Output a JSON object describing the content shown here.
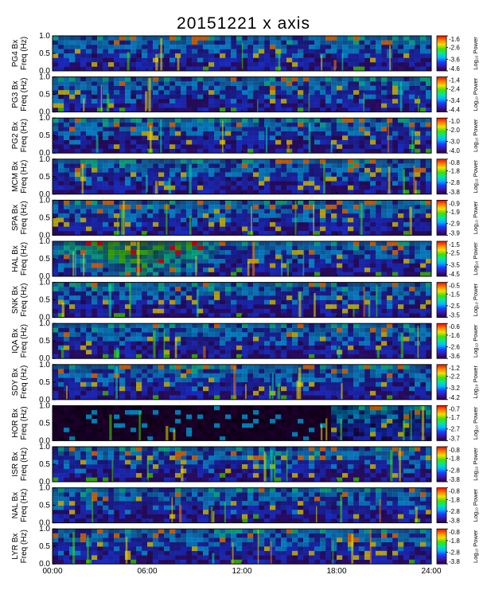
{
  "title": "20151221 x axis",
  "side_note": "",
  "chart_data": {
    "type": "heatmap",
    "title": "20151221 x axis",
    "x_axis": {
      "range_hours": [
        0,
        24
      ],
      "ticks": [
        "00:00",
        "06:00",
        "12:00",
        "18:00",
        "24:00"
      ],
      "tick_values_hours": [
        0,
        6,
        12,
        18,
        24
      ]
    },
    "y_axis": {
      "range_hz": [
        0,
        1.0
      ],
      "ticks": [
        "0.0",
        "0.5",
        "1.0"
      ],
      "tick_values_hz": [
        0,
        0.5,
        1.0
      ]
    },
    "colorbar_title": "Log₁₀ Power",
    "colormap": [
      "#2a0040",
      "#3a14a0",
      "#1a3cff",
      "#00b4ff",
      "#00e6a0",
      "#40e000",
      "#f0e000",
      "#ff8000",
      "#ff0000"
    ],
    "panels": [
      {
        "station": "PG4",
        "ylabel": "PG4 Bx Freq (Hz)",
        "cbar_ticks": [
          "-1.6",
          "-2.6",
          "-3.6",
          "-4.6"
        ],
        "cbar_range": [
          -4.6,
          -1.6
        ]
      },
      {
        "station": "PG3",
        "ylabel": "PG3 Bx Freq (Hz)",
        "cbar_ticks": [
          "-1.4",
          "-2.4",
          "-3.4",
          "-4.4"
        ],
        "cbar_range": [
          -4.4,
          -1.4
        ]
      },
      {
        "station": "PG2",
        "ylabel": "PG2 Bx Freq (Hz)",
        "cbar_ticks": [
          "-1.0",
          "-2.0",
          "-3.0",
          "-4.0"
        ],
        "cbar_range": [
          -4.0,
          -1.0
        ]
      },
      {
        "station": "MCM",
        "ylabel": "MCM Bx Freq (Hz)",
        "cbar_ticks": [
          "-0.8",
          "-1.8",
          "-2.8",
          "-3.8"
        ],
        "cbar_range": [
          -3.8,
          -0.8
        ]
      },
      {
        "station": "SPA",
        "ylabel": "SPA Bx Freq (Hz)",
        "cbar_ticks": [
          "-0.9",
          "-1.9",
          "-2.9",
          "-3.9"
        ],
        "cbar_range": [
          -3.9,
          -0.9
        ]
      },
      {
        "station": "HAL",
        "ylabel": "HAL Bx Freq (Hz)",
        "cbar_ticks": [
          "-1.5",
          "-2.5",
          "-3.5",
          "-4.5"
        ],
        "cbar_range": [
          -4.5,
          -1.5
        ]
      },
      {
        "station": "SNK",
        "ylabel": "SNK Bx Freq (Hz)",
        "cbar_ticks": [
          "-0.5",
          "-1.5",
          "-2.5",
          "-3.5"
        ],
        "cbar_range": [
          -3.5,
          -0.5
        ]
      },
      {
        "station": "IQA",
        "ylabel": "IQA Bx Freq (Hz)",
        "cbar_ticks": [
          "-0.6",
          "-1.6",
          "-2.6",
          "-3.6"
        ],
        "cbar_range": [
          -3.6,
          -0.6
        ]
      },
      {
        "station": "SDY",
        "ylabel": "SDY Bx Freq (Hz)",
        "cbar_ticks": [
          "-1.2",
          "-2.2",
          "-3.2",
          "-4.2"
        ],
        "cbar_range": [
          -4.2,
          -1.2
        ]
      },
      {
        "station": "HOR",
        "ylabel": "HOR Bx Freq (Hz)",
        "cbar_ticks": [
          "-0.7",
          "-1.7",
          "-2.7",
          "-3.7"
        ],
        "cbar_range": [
          -3.7,
          -0.7
        ]
      },
      {
        "station": "ISR",
        "ylabel": "ISR Bx Freq (Hz)",
        "cbar_ticks": [
          "-0.8",
          "-1.8",
          "-2.8",
          "-3.8"
        ],
        "cbar_range": [
          -3.8,
          -0.8
        ]
      },
      {
        "station": "NAL",
        "ylabel": "NAL Bx Freq (Hz)",
        "cbar_ticks": [
          "-0.8",
          "-1.8",
          "-2.8",
          "-3.8"
        ],
        "cbar_range": [
          -3.8,
          -0.8
        ]
      },
      {
        "station": "LYR",
        "ylabel": "LYR Bx Freq (Hz)",
        "cbar_ticks": [
          "-0.8",
          "-1.8",
          "-2.8",
          "-3.8"
        ],
        "cbar_range": [
          -3.8,
          -0.8
        ]
      }
    ]
  }
}
